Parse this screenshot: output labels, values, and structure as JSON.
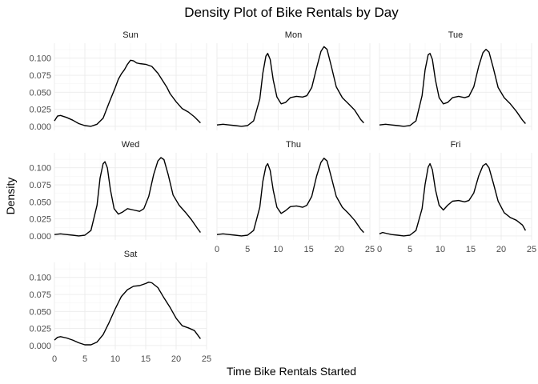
{
  "chart_data": {
    "type": "line",
    "title": "Density Plot of Bike Rentals by Day",
    "xlabel": "Time Bike Rentals Started",
    "ylabel": "Density",
    "xlim": [
      0,
      25
    ],
    "ylim": [
      0,
      0.12
    ],
    "x_ticks": [
      0,
      5,
      10,
      15,
      20,
      25
    ],
    "y_ticks": [
      0,
      0.025,
      0.05,
      0.075,
      0.1
    ],
    "y_tick_labels": [
      "0.000",
      "0.025",
      "0.050",
      "0.075",
      "0.100"
    ],
    "grid": true,
    "panels": [
      {
        "name": "Sun",
        "points": [
          [
            0,
            0.008
          ],
          [
            0.5,
            0.015
          ],
          [
            1,
            0.016
          ],
          [
            2,
            0.013
          ],
          [
            3,
            0.009
          ],
          [
            4,
            0.004
          ],
          [
            5,
            0.001
          ],
          [
            6,
            0.0
          ],
          [
            7,
            0.003
          ],
          [
            8,
            0.012
          ],
          [
            9,
            0.035
          ],
          [
            10,
            0.057
          ],
          [
            10.5,
            0.069
          ],
          [
            11,
            0.077
          ],
          [
            11.5,
            0.083
          ],
          [
            12,
            0.091
          ],
          [
            12.5,
            0.097
          ],
          [
            13,
            0.096
          ],
          [
            13.5,
            0.093
          ],
          [
            14,
            0.092
          ],
          [
            15,
            0.091
          ],
          [
            16,
            0.088
          ],
          [
            17,
            0.078
          ],
          [
            18,
            0.064
          ],
          [
            18.5,
            0.057
          ],
          [
            19,
            0.048
          ],
          [
            20,
            0.036
          ],
          [
            21,
            0.026
          ],
          [
            22,
            0.021
          ],
          [
            23,
            0.014
          ],
          [
            24,
            0.005
          ]
        ]
      },
      {
        "name": "Mon",
        "points": [
          [
            0,
            0.002
          ],
          [
            1,
            0.003
          ],
          [
            2,
            0.002
          ],
          [
            3,
            0.001
          ],
          [
            4,
            0.0
          ],
          [
            5,
            0.001
          ],
          [
            6,
            0.008
          ],
          [
            7,
            0.04
          ],
          [
            7.5,
            0.078
          ],
          [
            8,
            0.103
          ],
          [
            8.3,
            0.107
          ],
          [
            8.7,
            0.098
          ],
          [
            9.2,
            0.068
          ],
          [
            9.8,
            0.043
          ],
          [
            10.5,
            0.033
          ],
          [
            11.2,
            0.035
          ],
          [
            12,
            0.042
          ],
          [
            13,
            0.044
          ],
          [
            14,
            0.043
          ],
          [
            14.7,
            0.045
          ],
          [
            15.5,
            0.057
          ],
          [
            16.3,
            0.086
          ],
          [
            17,
            0.11
          ],
          [
            17.5,
            0.117
          ],
          [
            18,
            0.113
          ],
          [
            18.7,
            0.088
          ],
          [
            19.5,
            0.058
          ],
          [
            20.5,
            0.042
          ],
          [
            21.5,
            0.033
          ],
          [
            22.5,
            0.024
          ],
          [
            23.5,
            0.01
          ],
          [
            24,
            0.005
          ]
        ]
      },
      {
        "name": "Tue",
        "points": [
          [
            0,
            0.002
          ],
          [
            1,
            0.003
          ],
          [
            2,
            0.002
          ],
          [
            3,
            0.001
          ],
          [
            4,
            0.0
          ],
          [
            5,
            0.001
          ],
          [
            6,
            0.008
          ],
          [
            7,
            0.045
          ],
          [
            7.5,
            0.083
          ],
          [
            8,
            0.105
          ],
          [
            8.3,
            0.107
          ],
          [
            8.7,
            0.098
          ],
          [
            9.2,
            0.068
          ],
          [
            9.8,
            0.042
          ],
          [
            10.5,
            0.033
          ],
          [
            11.2,
            0.035
          ],
          [
            12,
            0.042
          ],
          [
            13,
            0.044
          ],
          [
            14,
            0.042
          ],
          [
            14.7,
            0.044
          ],
          [
            15.5,
            0.058
          ],
          [
            16.3,
            0.088
          ],
          [
            17,
            0.108
          ],
          [
            17.5,
            0.113
          ],
          [
            18,
            0.109
          ],
          [
            18.7,
            0.086
          ],
          [
            19.5,
            0.057
          ],
          [
            20.5,
            0.042
          ],
          [
            21.5,
            0.033
          ],
          [
            22.5,
            0.022
          ],
          [
            23.5,
            0.009
          ],
          [
            24,
            0.004
          ]
        ]
      },
      {
        "name": "Wed",
        "points": [
          [
            0,
            0.002
          ],
          [
            1,
            0.003
          ],
          [
            2,
            0.002
          ],
          [
            3,
            0.001
          ],
          [
            4,
            0.0
          ],
          [
            5,
            0.001
          ],
          [
            6,
            0.008
          ],
          [
            7,
            0.045
          ],
          [
            7.5,
            0.085
          ],
          [
            8,
            0.106
          ],
          [
            8.3,
            0.109
          ],
          [
            8.7,
            0.1
          ],
          [
            9.2,
            0.068
          ],
          [
            9.8,
            0.04
          ],
          [
            10.5,
            0.032
          ],
          [
            11.2,
            0.035
          ],
          [
            12,
            0.04
          ],
          [
            13,
            0.038
          ],
          [
            14,
            0.036
          ],
          [
            14.7,
            0.04
          ],
          [
            15.5,
            0.058
          ],
          [
            16.3,
            0.09
          ],
          [
            17,
            0.11
          ],
          [
            17.5,
            0.115
          ],
          [
            18,
            0.112
          ],
          [
            18.7,
            0.09
          ],
          [
            19.5,
            0.06
          ],
          [
            20.5,
            0.045
          ],
          [
            21.5,
            0.035
          ],
          [
            22.5,
            0.024
          ],
          [
            23.5,
            0.011
          ],
          [
            24,
            0.005
          ]
        ]
      },
      {
        "name": "Thu",
        "points": [
          [
            0,
            0.002
          ],
          [
            1,
            0.003
          ],
          [
            2,
            0.002
          ],
          [
            3,
            0.001
          ],
          [
            4,
            0.0
          ],
          [
            5,
            0.001
          ],
          [
            6,
            0.008
          ],
          [
            7,
            0.042
          ],
          [
            7.5,
            0.08
          ],
          [
            8,
            0.102
          ],
          [
            8.3,
            0.106
          ],
          [
            8.7,
            0.096
          ],
          [
            9.2,
            0.067
          ],
          [
            9.8,
            0.042
          ],
          [
            10.5,
            0.033
          ],
          [
            11.2,
            0.037
          ],
          [
            12,
            0.043
          ],
          [
            13,
            0.044
          ],
          [
            14,
            0.042
          ],
          [
            14.7,
            0.045
          ],
          [
            15.5,
            0.058
          ],
          [
            16.3,
            0.088
          ],
          [
            17,
            0.108
          ],
          [
            17.5,
            0.114
          ],
          [
            18,
            0.11
          ],
          [
            18.7,
            0.086
          ],
          [
            19.5,
            0.058
          ],
          [
            20.5,
            0.042
          ],
          [
            21.5,
            0.033
          ],
          [
            22.5,
            0.023
          ],
          [
            23.5,
            0.01
          ],
          [
            24,
            0.005
          ]
        ]
      },
      {
        "name": "Fri",
        "points": [
          [
            0,
            0.003
          ],
          [
            0.5,
            0.005
          ],
          [
            1,
            0.004
          ],
          [
            2,
            0.002
          ],
          [
            3,
            0.001
          ],
          [
            4,
            0.0
          ],
          [
            5,
            0.001
          ],
          [
            6,
            0.008
          ],
          [
            7,
            0.04
          ],
          [
            7.5,
            0.076
          ],
          [
            8,
            0.101
          ],
          [
            8.3,
            0.106
          ],
          [
            8.7,
            0.097
          ],
          [
            9.2,
            0.068
          ],
          [
            9.8,
            0.045
          ],
          [
            10.5,
            0.038
          ],
          [
            11.2,
            0.045
          ],
          [
            12,
            0.051
          ],
          [
            13,
            0.052
          ],
          [
            14,
            0.05
          ],
          [
            14.7,
            0.052
          ],
          [
            15.5,
            0.063
          ],
          [
            16.3,
            0.088
          ],
          [
            17,
            0.103
          ],
          [
            17.5,
            0.106
          ],
          [
            18,
            0.1
          ],
          [
            18.7,
            0.078
          ],
          [
            19.5,
            0.051
          ],
          [
            20.5,
            0.034
          ],
          [
            21.5,
            0.027
          ],
          [
            22.5,
            0.023
          ],
          [
            23.5,
            0.016
          ],
          [
            24,
            0.008
          ]
        ]
      },
      {
        "name": "Sat",
        "points": [
          [
            0,
            0.008
          ],
          [
            0.5,
            0.012
          ],
          [
            1,
            0.013
          ],
          [
            2,
            0.011
          ],
          [
            3,
            0.008
          ],
          [
            4,
            0.004
          ],
          [
            5,
            0.001
          ],
          [
            6,
            0.001
          ],
          [
            7,
            0.005
          ],
          [
            8,
            0.016
          ],
          [
            9,
            0.034
          ],
          [
            10,
            0.054
          ],
          [
            11,
            0.072
          ],
          [
            12,
            0.082
          ],
          [
            13,
            0.087
          ],
          [
            14,
            0.088
          ],
          [
            15,
            0.091
          ],
          [
            15.5,
            0.093
          ],
          [
            16,
            0.092
          ],
          [
            17,
            0.085
          ],
          [
            18,
            0.07
          ],
          [
            19,
            0.056
          ],
          [
            20,
            0.04
          ],
          [
            21,
            0.029
          ],
          [
            22,
            0.026
          ],
          [
            23,
            0.022
          ],
          [
            24,
            0.01
          ]
        ]
      }
    ]
  }
}
